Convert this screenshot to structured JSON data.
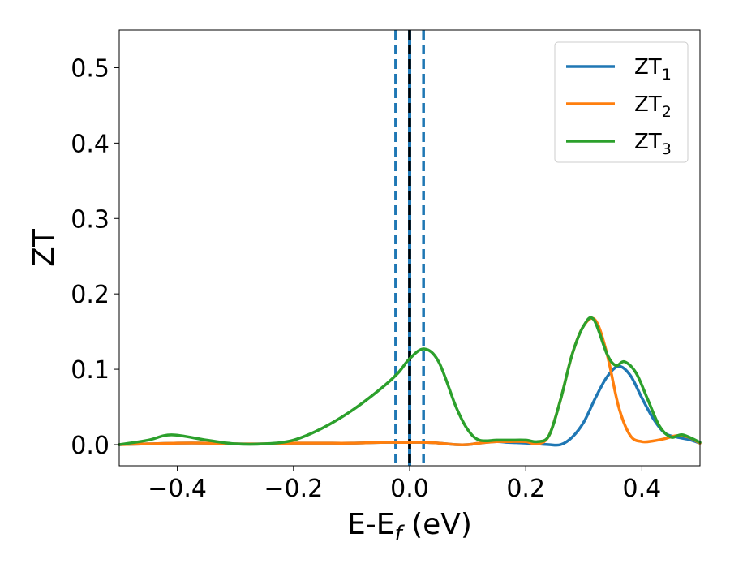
{
  "chart_data": {
    "type": "line",
    "title": "",
    "xlabel": "E-E",
    "xlabel_sub": "f",
    "xlabel_unit": " (eV)",
    "ylabel": "ZT",
    "xlim": [
      -0.5,
      0.5
    ],
    "ylim": [
      -0.028,
      0.55
    ],
    "grid": false,
    "legend_position": "top-right",
    "x_ticks": [
      -0.4,
      -0.2,
      0.0,
      0.2,
      0.4
    ],
    "x_tick_labels": [
      "−0.4",
      "−0.2",
      "0.0",
      "0.2",
      "0.4"
    ],
    "y_ticks": [
      0.0,
      0.1,
      0.2,
      0.3,
      0.4,
      0.5
    ],
    "y_tick_labels": [
      "0.0",
      "0.1",
      "0.2",
      "0.3",
      "0.4",
      "0.5"
    ],
    "reference_lines": [
      {
        "x": -0.024,
        "style": "dashed",
        "color": "#1f77b4"
      },
      {
        "x": 0.0,
        "style": "solid",
        "color": "#1f77b4"
      },
      {
        "x": 0.0,
        "style": "dashed",
        "color": "#000000"
      },
      {
        "x": 0.024,
        "style": "dashed",
        "color": "#1f77b4"
      }
    ],
    "series": [
      {
        "name": "ZT",
        "sub": "1",
        "color": "#1f77b4",
        "x": [
          -0.5,
          -0.45,
          -0.4,
          -0.35,
          -0.3,
          -0.25,
          -0.2,
          -0.15,
          -0.1,
          -0.05,
          -0.02,
          0.0,
          0.03,
          0.05,
          0.08,
          0.1,
          0.12,
          0.15,
          0.17,
          0.2,
          0.22,
          0.24,
          0.26,
          0.28,
          0.3,
          0.32,
          0.34,
          0.36,
          0.38,
          0.4,
          0.42,
          0.44,
          0.46,
          0.48,
          0.5
        ],
        "y": [
          0.0,
          0.001,
          0.002,
          0.002,
          0.001,
          0.001,
          0.002,
          0.002,
          0.002,
          0.003,
          0.003,
          0.003,
          0.003,
          0.002,
          0.0,
          0.0,
          0.002,
          0.004,
          0.003,
          0.002,
          0.001,
          0.0,
          0.0,
          0.01,
          0.03,
          0.062,
          0.09,
          0.104,
          0.092,
          0.062,
          0.034,
          0.015,
          0.01,
          0.007,
          0.002
        ]
      },
      {
        "name": "ZT",
        "sub": "2",
        "color": "#ff7f0e",
        "x": [
          -0.5,
          -0.45,
          -0.4,
          -0.35,
          -0.3,
          -0.25,
          -0.2,
          -0.15,
          -0.1,
          -0.05,
          -0.02,
          0.0,
          0.03,
          0.05,
          0.08,
          0.1,
          0.12,
          0.15,
          0.17,
          0.2,
          0.22,
          0.24,
          0.26,
          0.28,
          0.3,
          0.32,
          0.34,
          0.36,
          0.38,
          0.4,
          0.42,
          0.44,
          0.46,
          0.48,
          0.5
        ],
        "y": [
          0.0,
          0.001,
          0.002,
          0.002,
          0.001,
          0.001,
          0.002,
          0.002,
          0.002,
          0.003,
          0.003,
          0.003,
          0.003,
          0.002,
          0.0,
          0.0,
          0.002,
          0.004,
          0.004,
          0.004,
          0.001,
          0.012,
          0.06,
          0.12,
          0.158,
          0.165,
          0.12,
          0.05,
          0.012,
          0.004,
          0.005,
          0.008,
          0.012,
          0.01,
          0.002
        ]
      },
      {
        "name": "ZT",
        "sub": "3",
        "color": "#2ca02c",
        "x": [
          -0.5,
          -0.45,
          -0.41,
          -0.35,
          -0.3,
          -0.25,
          -0.2,
          -0.15,
          -0.1,
          -0.05,
          -0.02,
          0.0,
          0.025,
          0.05,
          0.08,
          0.1,
          0.12,
          0.15,
          0.17,
          0.2,
          0.22,
          0.24,
          0.26,
          0.28,
          0.3,
          0.317,
          0.34,
          0.355,
          0.37,
          0.39,
          0.41,
          0.43,
          0.45,
          0.47,
          0.5
        ],
        "y": [
          0.0,
          0.006,
          0.013,
          0.006,
          0.001,
          0.001,
          0.006,
          0.022,
          0.045,
          0.074,
          0.095,
          0.114,
          0.127,
          0.11,
          0.05,
          0.02,
          0.006,
          0.006,
          0.006,
          0.006,
          0.004,
          0.012,
          0.06,
          0.12,
          0.158,
          0.166,
          0.12,
          0.105,
          0.11,
          0.095,
          0.06,
          0.025,
          0.01,
          0.013,
          0.003
        ]
      }
    ]
  }
}
